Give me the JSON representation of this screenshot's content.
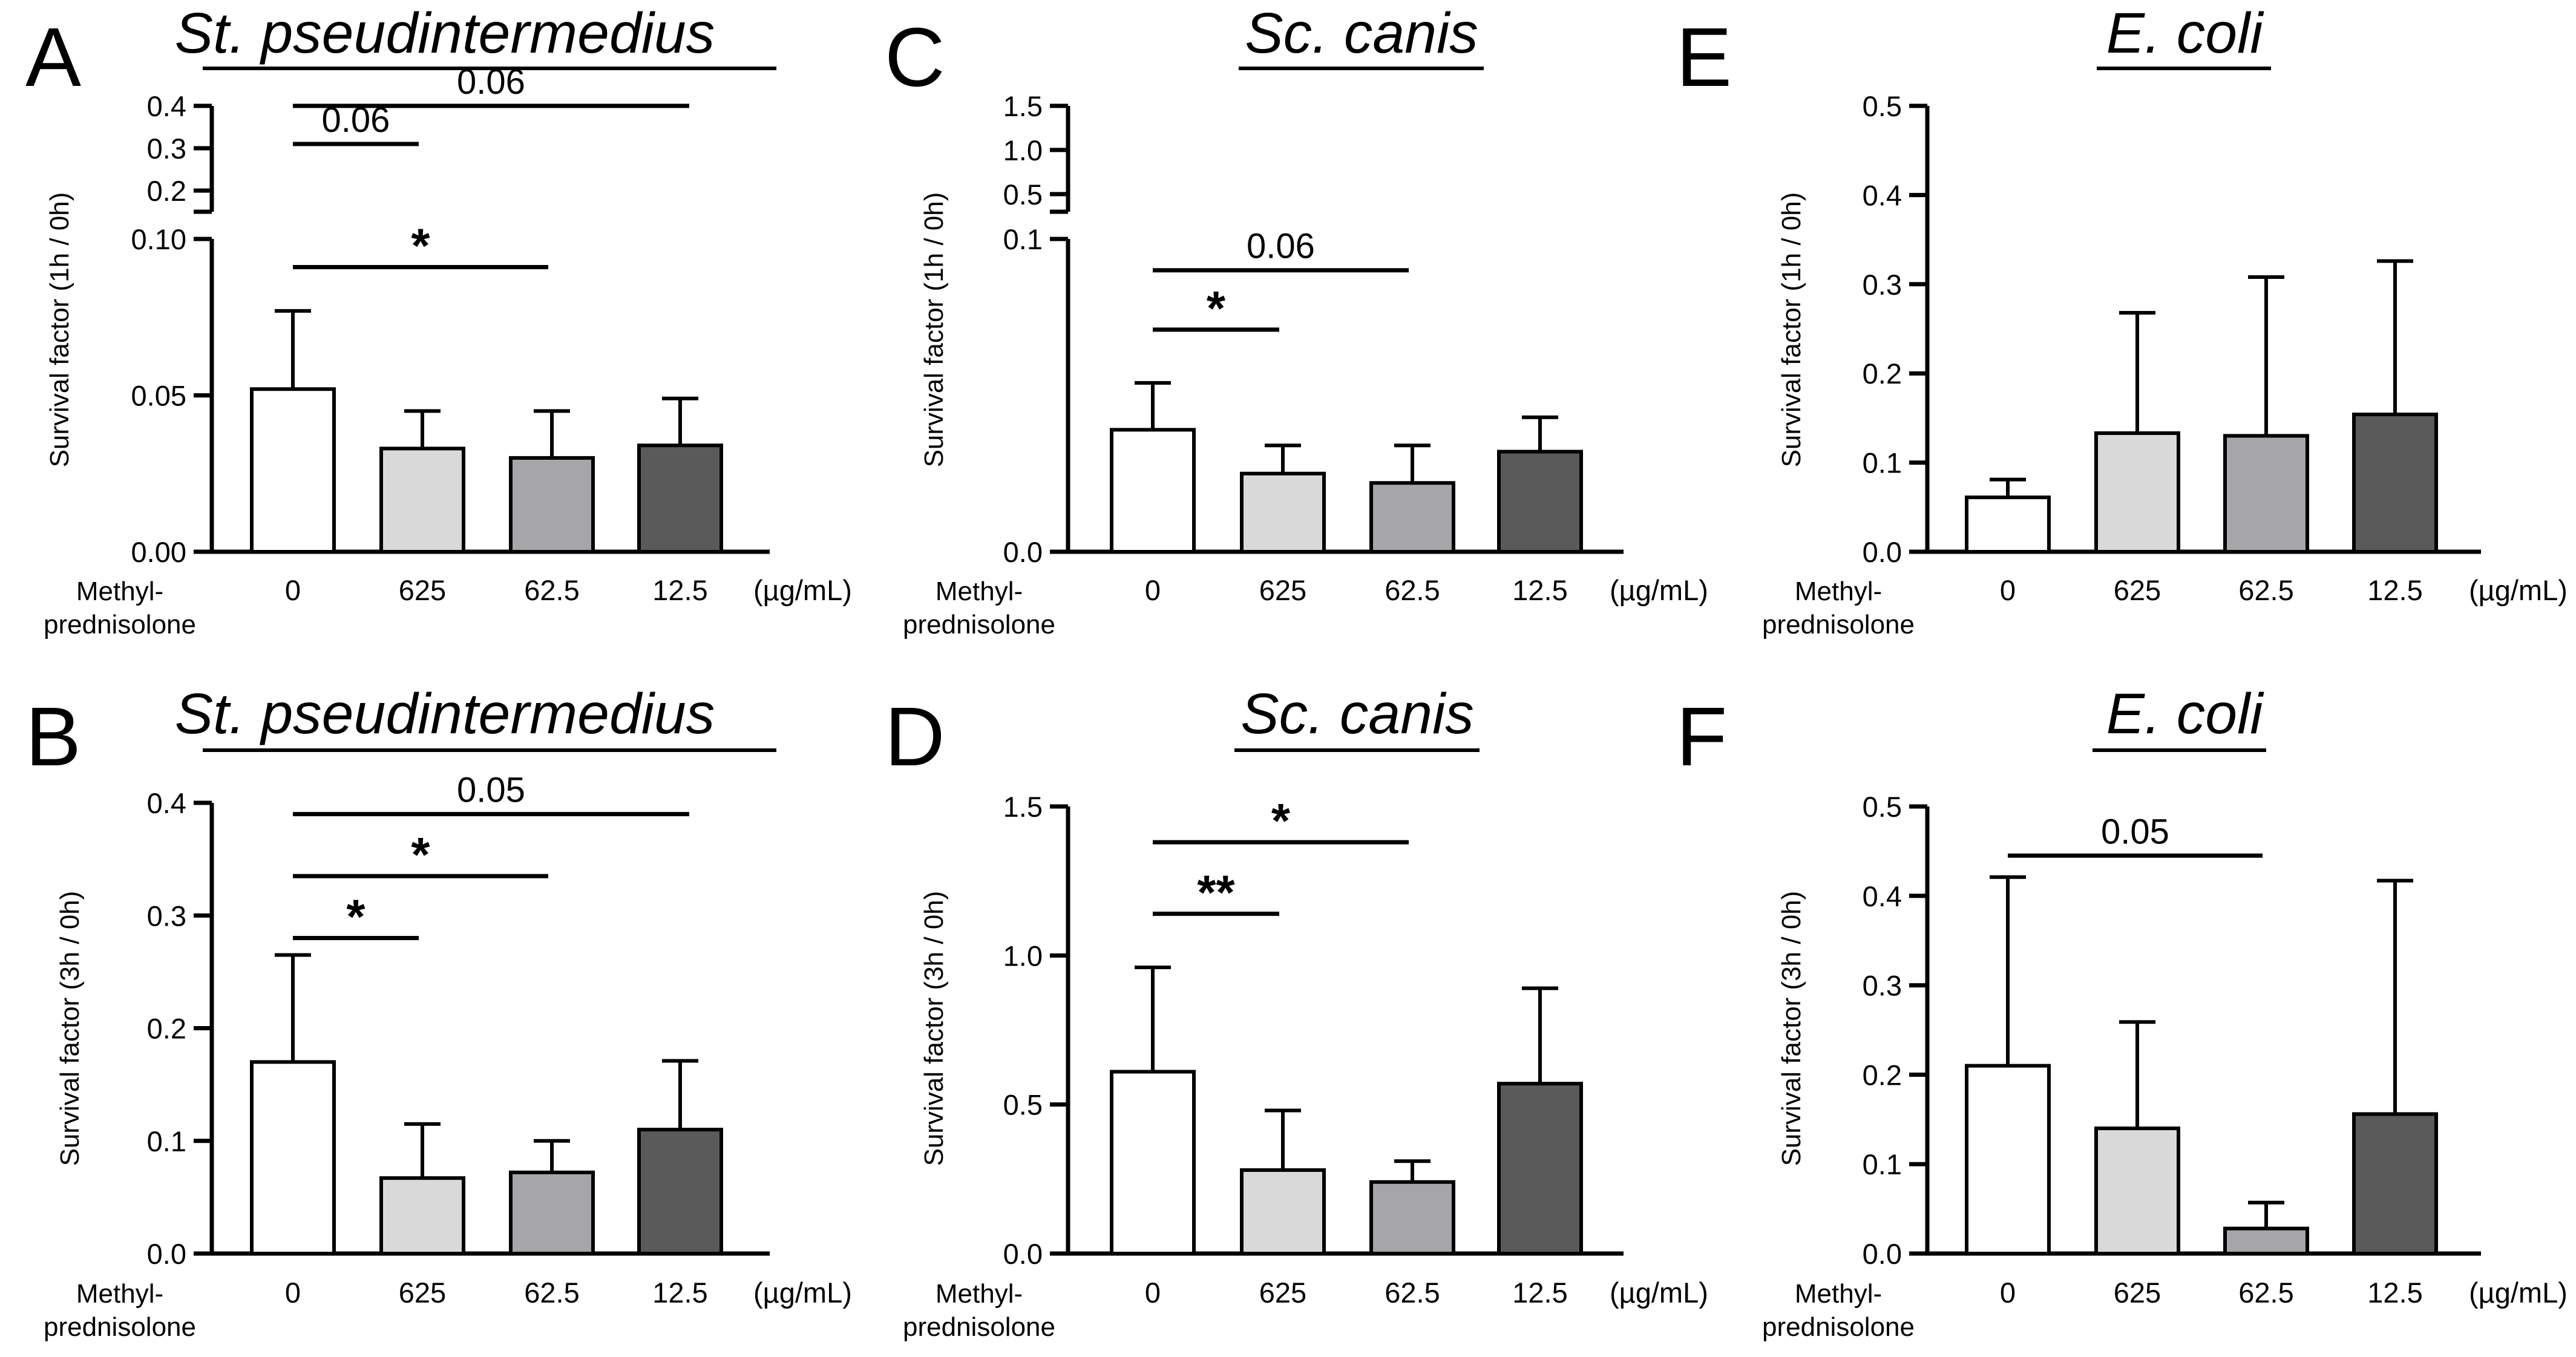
{
  "figure": {
    "xunit": "(µg/mL)",
    "drug_label_lines": [
      "Methyl-",
      "prednisolone"
    ]
  },
  "chart_data": [
    {
      "panel": "A",
      "type": "bar",
      "title": "St. pseudintermedius",
      "ylabel": "Survival factor (1h / 0h)",
      "categories": [
        "0",
        "625",
        "62.5",
        "12.5"
      ],
      "values": [
        0.052,
        0.033,
        0.03,
        0.034
      ],
      "errors": [
        0.025,
        0.012,
        0.015,
        0.015
      ],
      "colors": [
        "#ffffff",
        "#d9d9d9",
        "#a6a6a8",
        "#5a5a5a"
      ],
      "axis_break": true,
      "ylim_lower": [
        0,
        0.1
      ],
      "yticks_lower": [
        "0.00",
        "0.05",
        "0.10"
      ],
      "ylim_upper": [
        0.15,
        0.4
      ],
      "yticks_upper": [
        "0.2",
        "0.3",
        "0.4"
      ],
      "significance": [
        {
          "from": 0,
          "to": 1,
          "label": "0.06",
          "y": 0.31
        },
        {
          "from": 0,
          "to": 3,
          "label": "0.06",
          "y": 0.4
        },
        {
          "from": 0,
          "to": 2,
          "label": "*",
          "y": 0.091
        }
      ]
    },
    {
      "panel": "B",
      "type": "bar",
      "title": "St. pseudintermedius",
      "ylabel": "Survival factor (3h / 0h)",
      "categories": [
        "0",
        "625",
        "62.5",
        "12.5"
      ],
      "values": [
        0.17,
        0.067,
        0.072,
        0.11
      ],
      "errors": [
        0.095,
        0.048,
        0.028,
        0.061
      ],
      "colors": [
        "#ffffff",
        "#d9d9d9",
        "#a6a6a8",
        "#5a5a5a"
      ],
      "axis_break": false,
      "ylim": [
        0,
        0.4
      ],
      "yticks": [
        "0.0",
        "0.1",
        "0.2",
        "0.3",
        "0.4"
      ],
      "significance": [
        {
          "from": 0,
          "to": 1,
          "label": "*",
          "y": 0.28
        },
        {
          "from": 0,
          "to": 2,
          "label": "*",
          "y": 0.335
        },
        {
          "from": 0,
          "to": 3,
          "label": "0.05",
          "y": 0.39
        }
      ]
    },
    {
      "panel": "C",
      "type": "bar",
      "title": "Sc. canis",
      "ylabel": "Survival factor (1h / 0h)",
      "categories": [
        "0",
        "625",
        "62.5",
        "12.5"
      ],
      "values": [
        0.039,
        0.025,
        0.022,
        0.032
      ],
      "errors": [
        0.015,
        0.009,
        0.012,
        0.011
      ],
      "colors": [
        "#ffffff",
        "#d9d9d9",
        "#a6a6a8",
        "#5a5a5a"
      ],
      "axis_break": true,
      "ylim_lower": [
        0,
        0.1
      ],
      "yticks_lower": [
        "0.0",
        "0.1"
      ],
      "ylim_upper": [
        0.3,
        1.5
      ],
      "yticks_upper": [
        "0.5",
        "1.0",
        "1.5"
      ],
      "significance": [
        {
          "from": 0,
          "to": 1,
          "label": "*",
          "y": 0.071
        },
        {
          "from": 0,
          "to": 2,
          "label": "0.06",
          "y": 0.09
        }
      ]
    },
    {
      "panel": "D",
      "type": "bar",
      "title": "Sc. canis",
      "ylabel": "Survival factor (3h / 0h)",
      "categories": [
        "0",
        "625",
        "62.5",
        "12.5"
      ],
      "values": [
        0.61,
        0.28,
        0.24,
        0.57
      ],
      "errors": [
        0.35,
        0.2,
        0.07,
        0.32
      ],
      "colors": [
        "#ffffff",
        "#d9d9d9",
        "#a6a6a8",
        "#5a5a5a"
      ],
      "axis_break": false,
      "ylim": [
        0,
        1.5
      ],
      "yticks": [
        "0.0",
        "0.5",
        "1.0",
        "1.5"
      ],
      "significance": [
        {
          "from": 0,
          "to": 1,
          "label": "**",
          "y": 1.14
        },
        {
          "from": 0,
          "to": 2,
          "label": "*",
          "y": 1.38
        }
      ]
    },
    {
      "panel": "E",
      "type": "bar",
      "title": "E. coli",
      "ylabel": "Survival factor (1h / 0h)",
      "categories": [
        "0",
        "625",
        "62.5",
        "12.5"
      ],
      "values": [
        0.061,
        0.133,
        0.13,
        0.154
      ],
      "errors": [
        0.02,
        0.135,
        0.178,
        0.172
      ],
      "colors": [
        "#ffffff",
        "#d9d9d9",
        "#a6a6a8",
        "#5a5a5a"
      ],
      "axis_break": false,
      "ylim": [
        0,
        0.5
      ],
      "yticks": [
        "0.0",
        "0.1",
        "0.2",
        "0.3",
        "0.4",
        "0.5"
      ],
      "significance": []
    },
    {
      "panel": "F",
      "type": "bar",
      "title": "E. coli",
      "ylabel": "Survival factor (3h / 0h)",
      "categories": [
        "0",
        "625",
        "62.5",
        "12.5"
      ],
      "values": [
        0.21,
        0.14,
        0.028,
        0.156
      ],
      "errors": [
        0.211,
        0.119,
        0.029,
        0.261
      ],
      "colors": [
        "#ffffff",
        "#d9d9d9",
        "#a6a6a8",
        "#5a5a5a"
      ],
      "axis_break": false,
      "ylim": [
        0,
        0.5
      ],
      "yticks": [
        "0.0",
        "0.1",
        "0.2",
        "0.3",
        "0.4",
        "0.5"
      ],
      "significance": [
        {
          "from": 0,
          "to": 2,
          "label": "0.05",
          "y": 0.445
        }
      ]
    }
  ]
}
